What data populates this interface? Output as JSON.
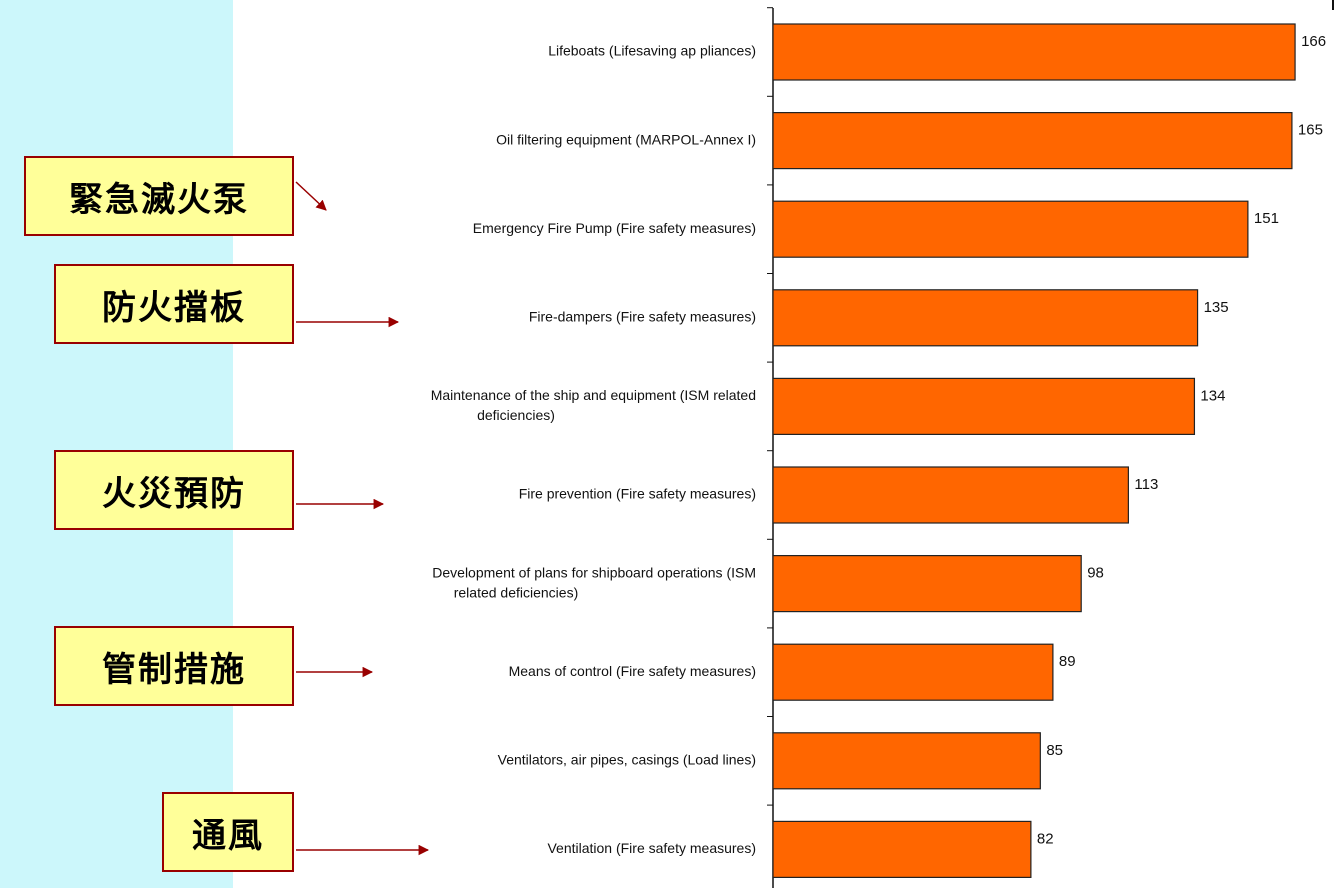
{
  "colors": {
    "bar": "#ff6600",
    "bar_stroke": "#222222",
    "band": "#ccf7fb",
    "note_fill": "#ffff99",
    "note_border": "#990000",
    "arrow": "#990000",
    "axis": "#111111"
  },
  "chart_data": {
    "type": "bar",
    "orientation": "horizontal",
    "title": "",
    "xlabel": "",
    "ylabel": "",
    "xlim": [
      0,
      175
    ],
    "grid": false,
    "legend": "none",
    "data_labels": true,
    "categories": [
      [
        "Lifeboats (Lifesaving ap pliances)"
      ],
      [
        "Oil filtering equipment (MARPOL-Annex I)"
      ],
      [
        "Emergency Fire Pump (Fire safety measures)"
      ],
      [
        "Fire-dampers (Fire safety measures)"
      ],
      [
        "Maintenance of the ship and equipment (ISM related",
        "deficiencies)"
      ],
      [
        "Fire prevention (Fire safety measures)"
      ],
      [
        "Development of plans for shipboard operations (ISM",
        "related deficiencies)"
      ],
      [
        "Means of control (Fire safety measures)"
      ],
      [
        "Ventilators, air pipes, casings (Load lines)"
      ],
      [
        "Ventilation (Fire safety measures)"
      ]
    ],
    "values": [
      166,
      165,
      151,
      135,
      134,
      113,
      98,
      89,
      85,
      82
    ]
  },
  "annotations": [
    {
      "text": "緊急滅火泵",
      "category_index": 2,
      "icon": "arrow-right-icon"
    },
    {
      "text": "防火擋板",
      "category_index": 3,
      "icon": "arrow-right-icon"
    },
    {
      "text": "火災預防",
      "category_index": 5,
      "icon": "arrow-right-icon"
    },
    {
      "text": "管制措施",
      "category_index": 7,
      "icon": "arrow-right-icon"
    },
    {
      "text": "通風",
      "category_index": 9,
      "icon": "arrow-right-icon"
    }
  ]
}
